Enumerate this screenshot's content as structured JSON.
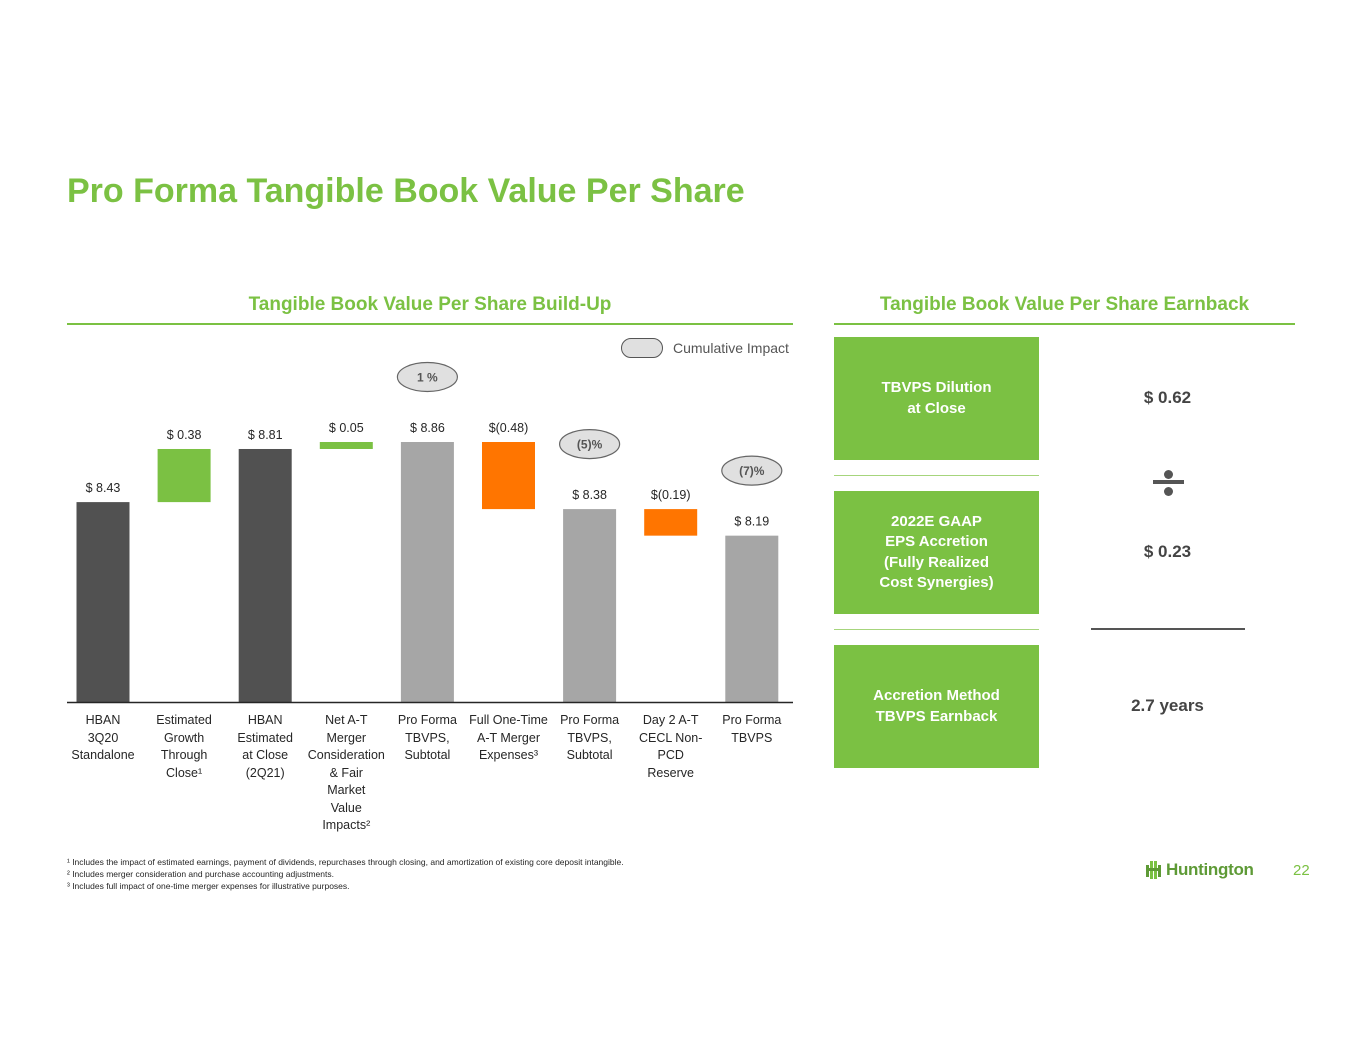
{
  "title": "Pro Forma Tangible Book Value Per Share",
  "left_section": {
    "heading": "Tangible Book Value Per Share Build-Up"
  },
  "right_section": {
    "heading": "Tangible Book Value Per Share Earnback"
  },
  "legend": {
    "label": "Cumulative Impact"
  },
  "colors": {
    "accent": "#7bc143",
    "dark_bar": "#515151",
    "gray_bar": "#a6a6a6",
    "increase": "#7bc143",
    "decrease": "#ff7500",
    "bubble": "#e0e0e0"
  },
  "chart_data": {
    "type": "waterfall",
    "ylim": [
      7.0,
      9.5
    ],
    "categories": [
      "HBAN\n3Q20\nStandalone",
      "Estimated\nGrowth\nThrough\nClose¹",
      "HBAN\nEstimated\nat Close\n(2Q21)",
      "Net A-T\nMerger\nConsideration\n& Fair\nMarket\nValue\nImpacts²",
      "Pro Forma\nTBVPS,\nSubtotal",
      "Full One-Time\nA-T Merger\nExpenses³",
      "Pro Forma\nTBVPS,\nSubtotal",
      "Day 2 A-T\nCECL Non-\nPCD\nReserve",
      "Pro Forma\nTBVPS"
    ],
    "bars": [
      {
        "kind": "total",
        "style": "dark",
        "value": 8.43,
        "label": "$ 8.43"
      },
      {
        "kind": "delta",
        "style": "increase",
        "start": 8.43,
        "end": 8.81,
        "label": "$ 0.38"
      },
      {
        "kind": "total",
        "style": "dark",
        "value": 8.81,
        "label": "$ 8.81"
      },
      {
        "kind": "delta",
        "style": "increase",
        "start": 8.81,
        "end": 8.86,
        "label": "$ 0.05"
      },
      {
        "kind": "total",
        "style": "gray",
        "value": 8.86,
        "label": "$ 8.86"
      },
      {
        "kind": "delta",
        "style": "decrease",
        "start": 8.86,
        "end": 8.38,
        "label": "$(0.48)"
      },
      {
        "kind": "total",
        "style": "gray",
        "value": 8.38,
        "label": "$ 8.38"
      },
      {
        "kind": "delta",
        "style": "decrease",
        "start": 8.38,
        "end": 8.19,
        "label": "$(0.19)"
      },
      {
        "kind": "total",
        "style": "gray",
        "value": 8.19,
        "label": "$ 8.19"
      }
    ],
    "cumulative_impacts": [
      {
        "bar_index": 4,
        "label": "1 %"
      },
      {
        "bar_index": 6,
        "label": "(5)%"
      },
      {
        "bar_index": 8,
        "label": "(7)%"
      }
    ]
  },
  "earnback": {
    "boxes": [
      {
        "label": "TBVPS Dilution\nat Close",
        "value": "$ 0.62"
      },
      {
        "label": "2022E GAAP\nEPS Accretion\n(Fully Realized\nCost Synergies)",
        "value": "$ 0.23"
      },
      {
        "label": "Accretion Method\nTBVPS Earnback",
        "value": "2.7 years"
      }
    ],
    "operator_icon": "divide-icon"
  },
  "footnotes": [
    "¹ Includes the impact of estimated earnings, payment of dividends, repurchases through closing, and amortization of existing core deposit intangible.",
    "² Includes merger consideration and purchase accounting adjustments.",
    "³ Includes full impact of one-time merger expenses for illustrative purposes."
  ],
  "logo": {
    "text": "Huntington",
    "icon": "huntington-logo-icon"
  },
  "page_number": "22"
}
